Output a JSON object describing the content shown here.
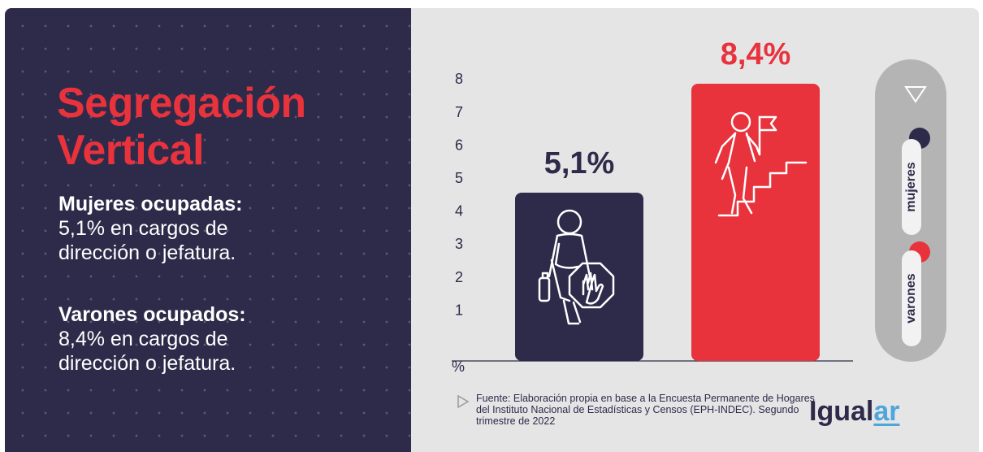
{
  "title_line1": "Segregación",
  "title_line2": "Vertical",
  "stats": [
    {
      "heading": "Mujeres ocupadas:",
      "body_line1": "5,1% en cargos de",
      "body_line2": "dirección o jefatura."
    },
    {
      "heading": "Varones ocupados:",
      "body_line1": "8,4% en cargos de",
      "body_line2": "dirección o jefatura."
    }
  ],
  "chart_data": {
    "type": "bar",
    "categories": [
      "mujeres",
      "varones"
    ],
    "values": [
      5.1,
      8.4
    ],
    "value_labels": [
      "5,1%",
      "8,4%"
    ],
    "colors": [
      "#2e2a4a",
      "#e8323c"
    ],
    "ylabel": "%",
    "yticks": [
      "1",
      "2",
      "3",
      "4",
      "5",
      "6",
      "7",
      "8"
    ],
    "ylim": [
      0,
      8.4
    ],
    "legend": [
      {
        "label": "mujeres",
        "color": "#2e2a4a"
      },
      {
        "label": "varones",
        "color": "#e8323c"
      }
    ],
    "legend_position": "right",
    "grid": false
  },
  "source_text": "Fuente: Elaboración propia en base a la Encuesta Permanente de Hogares del Instituto Nacional de Estadísticas y Censos (EPH-INDEC). Segundo trimestre de 2022",
  "logo": {
    "part1": "Igual",
    "part2": "ar"
  },
  "icons": [
    "woman-blocked-icon",
    "man-climbing-stairs-icon",
    "triangle-icon",
    "arrow-icon"
  ]
}
